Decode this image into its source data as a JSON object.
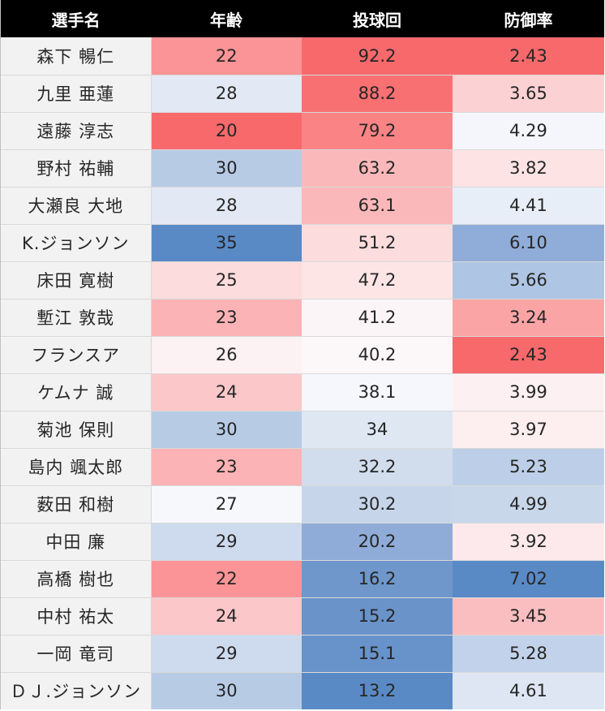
{
  "headers": [
    "選手名",
    "年齢",
    "投球回",
    "防御率"
  ],
  "colors": {
    "header_bg": "#000000",
    "header_text": "#ffffff",
    "name_bg": "#f2f2f2",
    "high_red": "#f8696b",
    "mid_white": "#fcfcff",
    "low_blue": "#5a8ac6"
  },
  "rows": [
    {
      "name": "森下 暢仁",
      "age": "22",
      "ip": "92.2",
      "era": "2.43",
      "age_color": "#fa9496",
      "ip_color": "#f8696b",
      "era_color": "#f8696b"
    },
    {
      "name": "九里 亜蓮",
      "age": "28",
      "ip": "88.2",
      "era": "3.65",
      "age_color": "#e2e9f4",
      "ip_color": "#f97072",
      "era_color": "#fcd1d3"
    },
    {
      "name": "遠藤 淳志",
      "age": "20",
      "ip": "79.2",
      "era": "4.29",
      "age_color": "#f8696b",
      "ip_color": "#fa8385",
      "era_color": "#f4f6fb"
    },
    {
      "name": "野村 祐輔",
      "age": "30",
      "ip": "63.2",
      "era": "3.82",
      "age_color": "#b8cbe5",
      "ip_color": "#fbb8ba",
      "era_color": "#fde3e4"
    },
    {
      "name": "大瀬良 大地",
      "age": "28",
      "ip": "63.1",
      "era": "4.41",
      "age_color": "#e2e9f4",
      "ip_color": "#fbb8ba",
      "era_color": "#e8eef7"
    },
    {
      "name": "K.ジョンソン",
      "age": "35",
      "ip": "51.2",
      "era": "6.10",
      "age_color": "#5a8ac6",
      "ip_color": "#fcdcdd",
      "era_color": "#8fadd8"
    },
    {
      "name": "床田 寛樹",
      "age": "25",
      "ip": "47.2",
      "era": "5.66",
      "age_color": "#fcdcdd",
      "ip_color": "#fde5e6",
      "era_color": "#aec5e3"
    },
    {
      "name": "塹江 敦哉",
      "age": "23",
      "ip": "41.2",
      "era": "3.24",
      "age_color": "#fbb3b5",
      "ip_color": "#fcf5f7",
      "era_color": "#fba4a6"
    },
    {
      "name": "フランスア",
      "age": "26",
      "ip": "40.2",
      "era": "2.43",
      "age_color": "#fcf1f3",
      "ip_color": "#fcf7f9",
      "era_color": "#f8696b"
    },
    {
      "name": "ケムナ 誠",
      "age": "24",
      "ip": "38.1",
      "era": "3.99",
      "age_color": "#fbc7c9",
      "ip_color": "#f5f7fc",
      "era_color": "#fdf0f2"
    },
    {
      "name": "菊池 保則",
      "age": "30",
      "ip": "34",
      "era": "3.97",
      "age_color": "#b8cbe5",
      "ip_color": "#dfe7f3",
      "era_color": "#fdeef0"
    },
    {
      "name": "島内 颯太郎",
      "age": "23",
      "ip": "32.2",
      "era": "5.23",
      "age_color": "#fbb3b5",
      "ip_color": "#d1dced",
      "era_color": "#bdcfe8"
    },
    {
      "name": "薮田 和樹",
      "age": "27",
      "ip": "30.2",
      "era": "4.99",
      "age_color": "#f6f8fc",
      "ip_color": "#c6d5ea",
      "era_color": "#c9d7eb"
    },
    {
      "name": "中田 廉",
      "age": "29",
      "ip": "20.2",
      "era": "3.92",
      "age_color": "#cedbee",
      "ip_color": "#8eacd7",
      "era_color": "#fde9eb"
    },
    {
      "name": "高橋 樹也",
      "age": "22",
      "ip": "16.2",
      "era": "7.02",
      "age_color": "#fa9496",
      "ip_color": "#6f97cc",
      "era_color": "#5a8ac6"
    },
    {
      "name": "中村 祐太",
      "age": "24",
      "ip": "15.2",
      "era": "3.45",
      "age_color": "#fbc7c9",
      "ip_color": "#6a93ca",
      "era_color": "#fbbec0"
    },
    {
      "name": "一岡 竜司",
      "age": "29",
      "ip": "15.1",
      "era": "5.28",
      "age_color": "#cedbee",
      "ip_color": "#6892ca",
      "era_color": "#c2d2ea"
    },
    {
      "name": "ＤＪ.ジョンソン",
      "age": "30",
      "ip": "13.2",
      "era": "4.61",
      "age_color": "#b8cbe5",
      "ip_color": "#5a8ac6",
      "era_color": "#dde6f2"
    }
  ]
}
